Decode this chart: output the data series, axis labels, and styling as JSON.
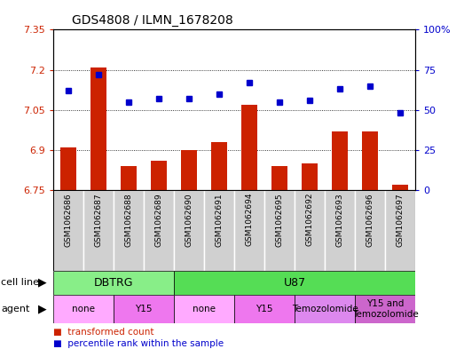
{
  "title": "GDS4808 / ILMN_1678208",
  "samples": [
    "GSM1062686",
    "GSM1062687",
    "GSM1062688",
    "GSM1062689",
    "GSM1062690",
    "GSM1062691",
    "GSM1062694",
    "GSM1062695",
    "GSM1062692",
    "GSM1062693",
    "GSM1062696",
    "GSM1062697"
  ],
  "bar_values": [
    6.91,
    7.21,
    6.84,
    6.86,
    6.9,
    6.93,
    7.07,
    6.84,
    6.85,
    6.97,
    6.97,
    6.77
  ],
  "scatter_values": [
    62,
    72,
    55,
    57,
    57,
    60,
    67,
    55,
    56,
    63,
    65,
    48
  ],
  "bar_color": "#cc2200",
  "scatter_color": "#0000cc",
  "ylim_left": [
    6.75,
    7.35
  ],
  "ylim_right": [
    0,
    100
  ],
  "yticks_left": [
    6.75,
    6.9,
    7.05,
    7.2,
    7.35
  ],
  "yticks_right": [
    0,
    25,
    50,
    75,
    100
  ],
  "ytick_labels_left": [
    "6.75",
    "6.9",
    "7.05",
    "7.2",
    "7.35"
  ],
  "ytick_labels_right": [
    "0",
    "25",
    "50",
    "75",
    "100%"
  ],
  "cell_line_groups": [
    {
      "label": "DBTRG",
      "start": 0,
      "end": 4,
      "color": "#88ee88"
    },
    {
      "label": "U87",
      "start": 4,
      "end": 12,
      "color": "#55dd55"
    }
  ],
  "agent_groups": [
    {
      "label": "none",
      "start": 0,
      "end": 2,
      "color": "#ffaaff"
    },
    {
      "label": "Y15",
      "start": 2,
      "end": 4,
      "color": "#ee77ee"
    },
    {
      "label": "none",
      "start": 4,
      "end": 6,
      "color": "#ffaaff"
    },
    {
      "label": "Y15",
      "start": 6,
      "end": 8,
      "color": "#ee77ee"
    },
    {
      "label": "Temozolomide",
      "start": 8,
      "end": 10,
      "color": "#dd88ee"
    },
    {
      "label": "Y15 and\nTemozolomide",
      "start": 10,
      "end": 12,
      "color": "#cc66cc"
    }
  ],
  "cell_line_row_label": "cell line",
  "agent_row_label": "agent",
  "legend_bar_label": "transformed count",
  "legend_scatter_label": "percentile rank within the sample",
  "bar_baseline": 6.75,
  "bar_color_dark": "#cc0000",
  "scatter_color_dark": "#0000cc"
}
